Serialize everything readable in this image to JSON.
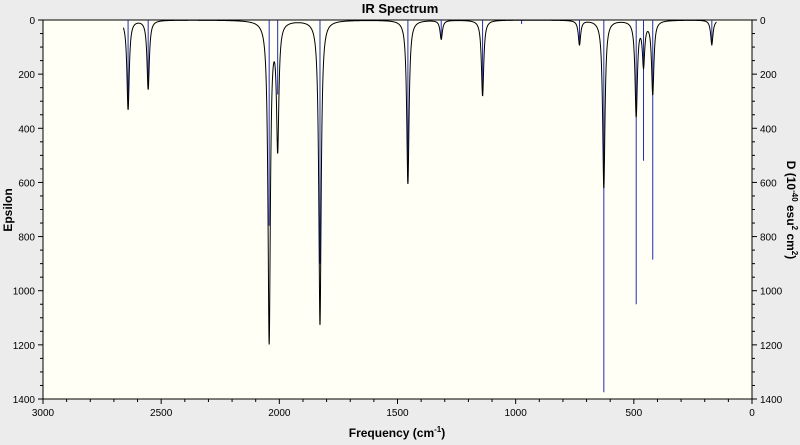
{
  "chart_data": {
    "type": "line",
    "title": "IR Spectrum",
    "xlabel": "Frequency (cm",
    "xlabel_sup": "-1",
    "xlabel_close": ")",
    "ylabel_left": "Epsilon",
    "ylabel_right": "D (10-40 esu2 cm2)",
    "ylabel_right_parts": [
      "D (10",
      "-40",
      " esu",
      "2",
      " cm",
      "2",
      ")"
    ],
    "x_reversed": true,
    "xlim": [
      3000,
      0
    ],
    "y_inverted": true,
    "ylim_left": [
      0,
      1400
    ],
    "ylim_right": [
      0,
      1400
    ],
    "x_ticks": [
      3000,
      2500,
      2000,
      1500,
      1000,
      500,
      0
    ],
    "y_ticks": [
      0,
      200,
      400,
      600,
      800,
      1000,
      1200,
      1400
    ],
    "grid": false,
    "line_color": "#000000",
    "stick_color": "#1f2db0",
    "plot_background": "#fffff6",
    "series": [
      {
        "kind": "spectrum-curve",
        "peaks": [
          {
            "freq": 2640,
            "epsilon": 330
          },
          {
            "freq": 2555,
            "epsilon": 255
          },
          {
            "freq": 2043,
            "epsilon": 1185
          },
          {
            "freq": 2007,
            "epsilon": 460
          },
          {
            "freq": 1828,
            "epsilon": 1125
          },
          {
            "freq": 1456,
            "epsilon": 605
          },
          {
            "freq": 1315,
            "epsilon": 70
          },
          {
            "freq": 1140,
            "epsilon": 280
          },
          {
            "freq": 730,
            "epsilon": 90
          },
          {
            "freq": 627,
            "epsilon": 620
          },
          {
            "freq": 490,
            "epsilon": 350
          },
          {
            "freq": 459,
            "epsilon": 160
          },
          {
            "freq": 420,
            "epsilon": 270
          },
          {
            "freq": 170,
            "epsilon": 90
          }
        ]
      },
      {
        "kind": "dipole-sticks",
        "sticks": [
          {
            "freq": 2640,
            "value": 330
          },
          {
            "freq": 2555,
            "value": 255
          },
          {
            "freq": 2043,
            "value": 760
          },
          {
            "freq": 2007,
            "value": 275
          },
          {
            "freq": 1828,
            "value": 900
          },
          {
            "freq": 1456,
            "value": 600
          },
          {
            "freq": 1315,
            "value": 70
          },
          {
            "freq": 1140,
            "value": 280
          },
          {
            "freq": 975,
            "value": 15
          },
          {
            "freq": 730,
            "value": 90
          },
          {
            "freq": 627,
            "value": 1375
          },
          {
            "freq": 490,
            "value": 1050
          },
          {
            "freq": 459,
            "value": 520
          },
          {
            "freq": 420,
            "value": 885
          },
          {
            "freq": 170,
            "value": 95
          }
        ]
      }
    ]
  }
}
